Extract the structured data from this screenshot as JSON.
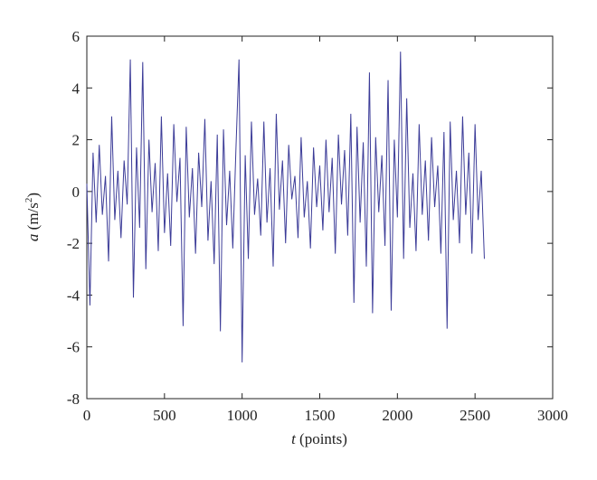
{
  "chart_data": {
    "type": "line",
    "xlabel": [
      "t",
      " (points)"
    ],
    "ylabel": [
      "a",
      " (m/s",
      "2",
      ")"
    ],
    "xlim": [
      0,
      3000
    ],
    "xticks": [
      0,
      500,
      1000,
      1500,
      2000,
      2500,
      3000
    ],
    "ylim": [
      -8,
      6
    ],
    "yticks": [
      -8,
      -6,
      -4,
      -2,
      0,
      2,
      4,
      6
    ],
    "x": [
      0,
      20,
      40,
      60,
      80,
      100,
      120,
      140,
      160,
      180,
      200,
      220,
      240,
      260,
      280,
      300,
      320,
      340,
      360,
      380,
      400,
      420,
      440,
      460,
      480,
      500,
      520,
      540,
      560,
      580,
      600,
      620,
      640,
      660,
      680,
      700,
      720,
      740,
      760,
      780,
      800,
      820,
      840,
      860,
      880,
      900,
      920,
      940,
      960,
      980,
      1000,
      1020,
      1040,
      1060,
      1080,
      1100,
      1120,
      1140,
      1160,
      1180,
      1200,
      1220,
      1240,
      1260,
      1280,
      1300,
      1320,
      1340,
      1360,
      1380,
      1400,
      1420,
      1440,
      1460,
      1480,
      1500,
      1520,
      1540,
      1560,
      1580,
      1600,
      1620,
      1640,
      1660,
      1680,
      1700,
      1720,
      1740,
      1760,
      1780,
      1800,
      1820,
      1840,
      1860,
      1880,
      1900,
      1920,
      1940,
      1960,
      1980,
      2000,
      2020,
      2040,
      2060,
      2080,
      2100,
      2120,
      2140,
      2160,
      2180,
      2200,
      2220,
      2240,
      2260,
      2280,
      2300,
      2320,
      2340,
      2360,
      2380,
      2400,
      2420,
      2440,
      2460,
      2480,
      2500,
      2520,
      2540,
      2560
    ],
    "series": [
      {
        "color": "#3c3c98",
        "values": [
          0.3,
          -4.4,
          1.5,
          -1.2,
          1.8,
          -0.9,
          0.6,
          -2.7,
          2.9,
          -1.1,
          0.8,
          -1.8,
          1.2,
          -0.5,
          5.1,
          -4.1,
          1.7,
          -1.4,
          5.0,
          -3.0,
          2.0,
          -0.8,
          1.1,
          -2.3,
          2.9,
          -1.6,
          0.7,
          -2.1,
          2.6,
          -0.4,
          1.3,
          -5.2,
          2.5,
          -1.0,
          0.9,
          -2.4,
          1.5,
          -0.6,
          2.8,
          -1.9,
          0.4,
          -2.8,
          2.2,
          -5.4,
          2.4,
          -1.3,
          0.8,
          -2.2,
          1.6,
          5.1,
          -6.6,
          1.4,
          -2.6,
          2.7,
          -0.9,
          0.5,
          -1.7,
          2.7,
          -1.2,
          0.9,
          -2.9,
          3.0,
          -0.7,
          1.2,
          -2.0,
          1.8,
          -0.3,
          0.6,
          -1.8,
          2.1,
          -1.0,
          0.4,
          -2.2,
          1.7,
          -0.6,
          1.0,
          -1.5,
          2.0,
          -0.8,
          1.3,
          -2.4,
          2.2,
          -0.5,
          1.6,
          -1.7,
          3.0,
          -4.3,
          2.5,
          -1.2,
          1.9,
          -2.9,
          4.6,
          -4.7,
          2.1,
          -0.8,
          1.4,
          -2.1,
          4.3,
          -4.6,
          2.0,
          -1.0,
          5.4,
          -2.6,
          3.6,
          -1.4,
          0.7,
          -2.3,
          2.6,
          -0.9,
          1.2,
          -1.9,
          2.1,
          -0.6,
          1.0,
          -2.4,
          2.3,
          -5.3,
          2.7,
          -1.1,
          0.8,
          -2.0,
          2.9,
          -0.9,
          1.5,
          -2.4,
          2.6,
          -1.1,
          0.8,
          -2.6
        ]
      }
    ]
  }
}
